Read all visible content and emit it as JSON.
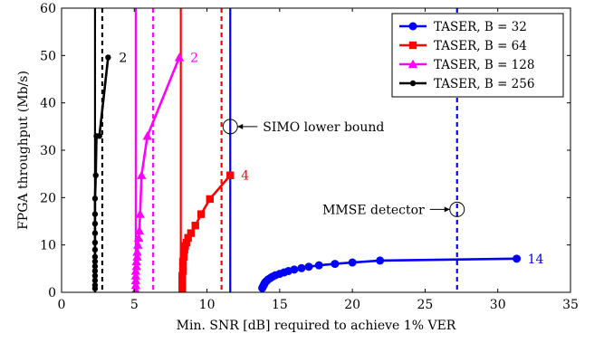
{
  "chart_data": {
    "type": "line",
    "xlabel": "Min. SNR [dB] required to achieve 1% VER",
    "ylabel": "FPGA throughput (Mb/s)",
    "xlim": [
      0,
      35
    ],
    "ylim": [
      0,
      60
    ],
    "xticks": [
      "0",
      "5",
      "10",
      "15",
      "20",
      "25",
      "30",
      "35"
    ],
    "yticks": [
      "0",
      "10",
      "20",
      "30",
      "40",
      "50",
      "60"
    ],
    "grid": false,
    "legend_position": "top-right",
    "series": [
      {
        "name": "TASER, B = 32",
        "color": "#0000ff",
        "marker": "circle",
        "x": [
          13.8,
          13.85,
          13.9,
          13.95,
          14.0,
          14.1,
          14.2,
          14.35,
          14.5,
          14.7,
          15.0,
          15.3,
          15.6,
          16.0,
          16.5,
          17.0,
          17.7,
          18.8,
          20.0,
          21.9,
          31.3
        ],
        "y": [
          0.9,
          1.2,
          1.5,
          1.8,
          2.1,
          2.4,
          2.7,
          3.0,
          3.3,
          3.6,
          3.9,
          4.2,
          4.5,
          4.8,
          5.1,
          5.4,
          5.7,
          6.0,
          6.3,
          6.7,
          7.1
        ],
        "end_label": "14"
      },
      {
        "name": "TASER, B = 64",
        "color": "#ff0000",
        "marker": "square",
        "x": [
          8.3,
          8.3,
          8.3,
          8.3,
          8.35,
          8.35,
          8.35,
          8.4,
          8.4,
          8.45,
          8.5,
          8.6,
          8.7,
          8.9,
          9.2,
          9.6,
          10.2,
          11.6
        ],
        "y": [
          0.5,
          1.5,
          2.5,
          3.5,
          4.5,
          5.5,
          6.5,
          7.5,
          8.3,
          9.0,
          9.8,
          10.5,
          11.5,
          12.5,
          14.1,
          16.5,
          19.7,
          24.7
        ],
        "end_label": "4"
      },
      {
        "name": "TASER, B = 128",
        "color": "#ff00ff",
        "marker": "triangle",
        "x": [
          5.1,
          5.1,
          5.1,
          5.1,
          5.1,
          5.15,
          5.15,
          5.2,
          5.2,
          5.25,
          5.3,
          5.35,
          5.4,
          5.5,
          5.9,
          8.1
        ],
        "y": [
          0.5,
          1.5,
          2.5,
          3.5,
          4.5,
          5.5,
          6.5,
          7.5,
          8.5,
          10.0,
          11.5,
          13.0,
          16.5,
          24.7,
          33.0,
          49.6
        ],
        "end_label": "2"
      },
      {
        "name": "TASER, B = 256",
        "color": "#000000",
        "marker": "dot",
        "x": [
          2.3,
          2.3,
          2.3,
          2.3,
          2.3,
          2.3,
          2.3,
          2.3,
          2.3,
          2.3,
          2.3,
          2.3,
          2.3,
          2.3,
          2.35,
          2.4,
          2.6,
          3.2
        ],
        "y": [
          0.8,
          1.5,
          2.5,
          3.5,
          4.5,
          5.5,
          6.5,
          7.5,
          9.0,
          10.5,
          12.5,
          14.5,
          16.5,
          19.8,
          24.7,
          33.0,
          33.0,
          49.6
        ],
        "end_label": "2"
      }
    ],
    "reference_lines": [
      {
        "x": 11.6,
        "color": "#0000ff",
        "style": "solid"
      },
      {
        "x": 8.2,
        "color": "#ff0000",
        "style": "solid"
      },
      {
        "x": 5.1,
        "color": "#ff00ff",
        "style": "solid"
      },
      {
        "x": 2.3,
        "color": "#000000",
        "style": "solid"
      },
      {
        "x": 27.2,
        "color": "#0000ff",
        "style": "dashed"
      },
      {
        "x": 11.0,
        "color": "#ff0000",
        "style": "dashed"
      },
      {
        "x": 6.3,
        "color": "#ff00ff",
        "style": "dashed"
      },
      {
        "x": 2.8,
        "color": "#000000",
        "style": "dashed"
      }
    ],
    "annotations": [
      {
        "text": "SIMO lower bound",
        "x": 11.6,
        "y": 35,
        "side": "right"
      },
      {
        "text": "MMSE detector",
        "x": 27.2,
        "y": 17.5,
        "side": "left"
      }
    ]
  }
}
